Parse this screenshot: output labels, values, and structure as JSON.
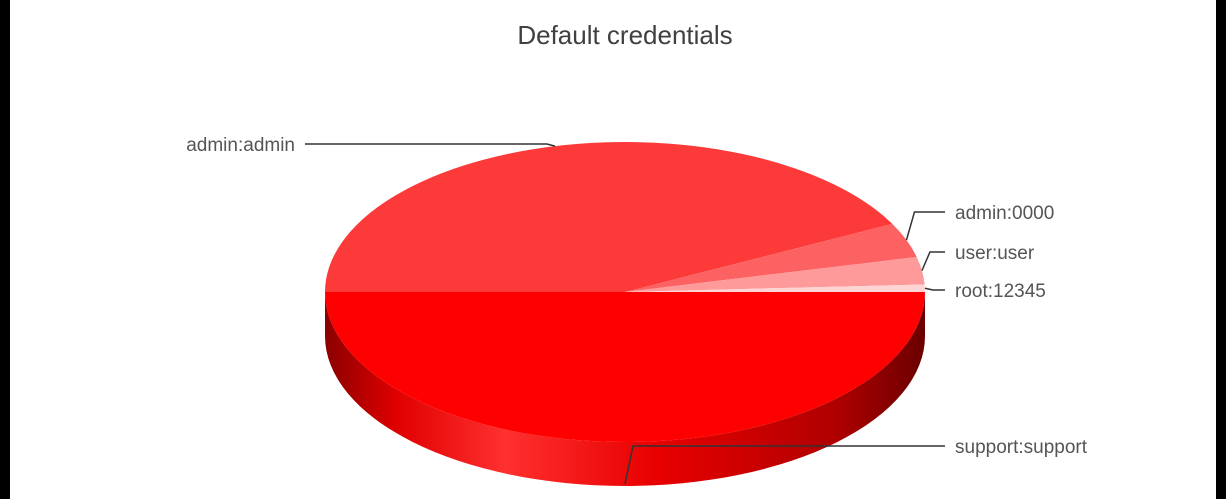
{
  "chart_data": {
    "type": "pie",
    "style": "3d",
    "title": "Default credentials",
    "slices": [
      {
        "label": "support:support",
        "value": 50.0,
        "color": "#ff0000"
      },
      {
        "label": "admin:admin",
        "value": 42.5,
        "color": "#fc3a3a"
      },
      {
        "label": "admin:0000",
        "value": 3.75,
        "color": "#fd6262"
      },
      {
        "label": "user:user",
        "value": 2.95,
        "color": "#fe9a9a"
      },
      {
        "label": "root:12345",
        "value": 0.8,
        "color": "#ffd4d4"
      }
    ],
    "legend": "none (labels with leader lines)"
  }
}
